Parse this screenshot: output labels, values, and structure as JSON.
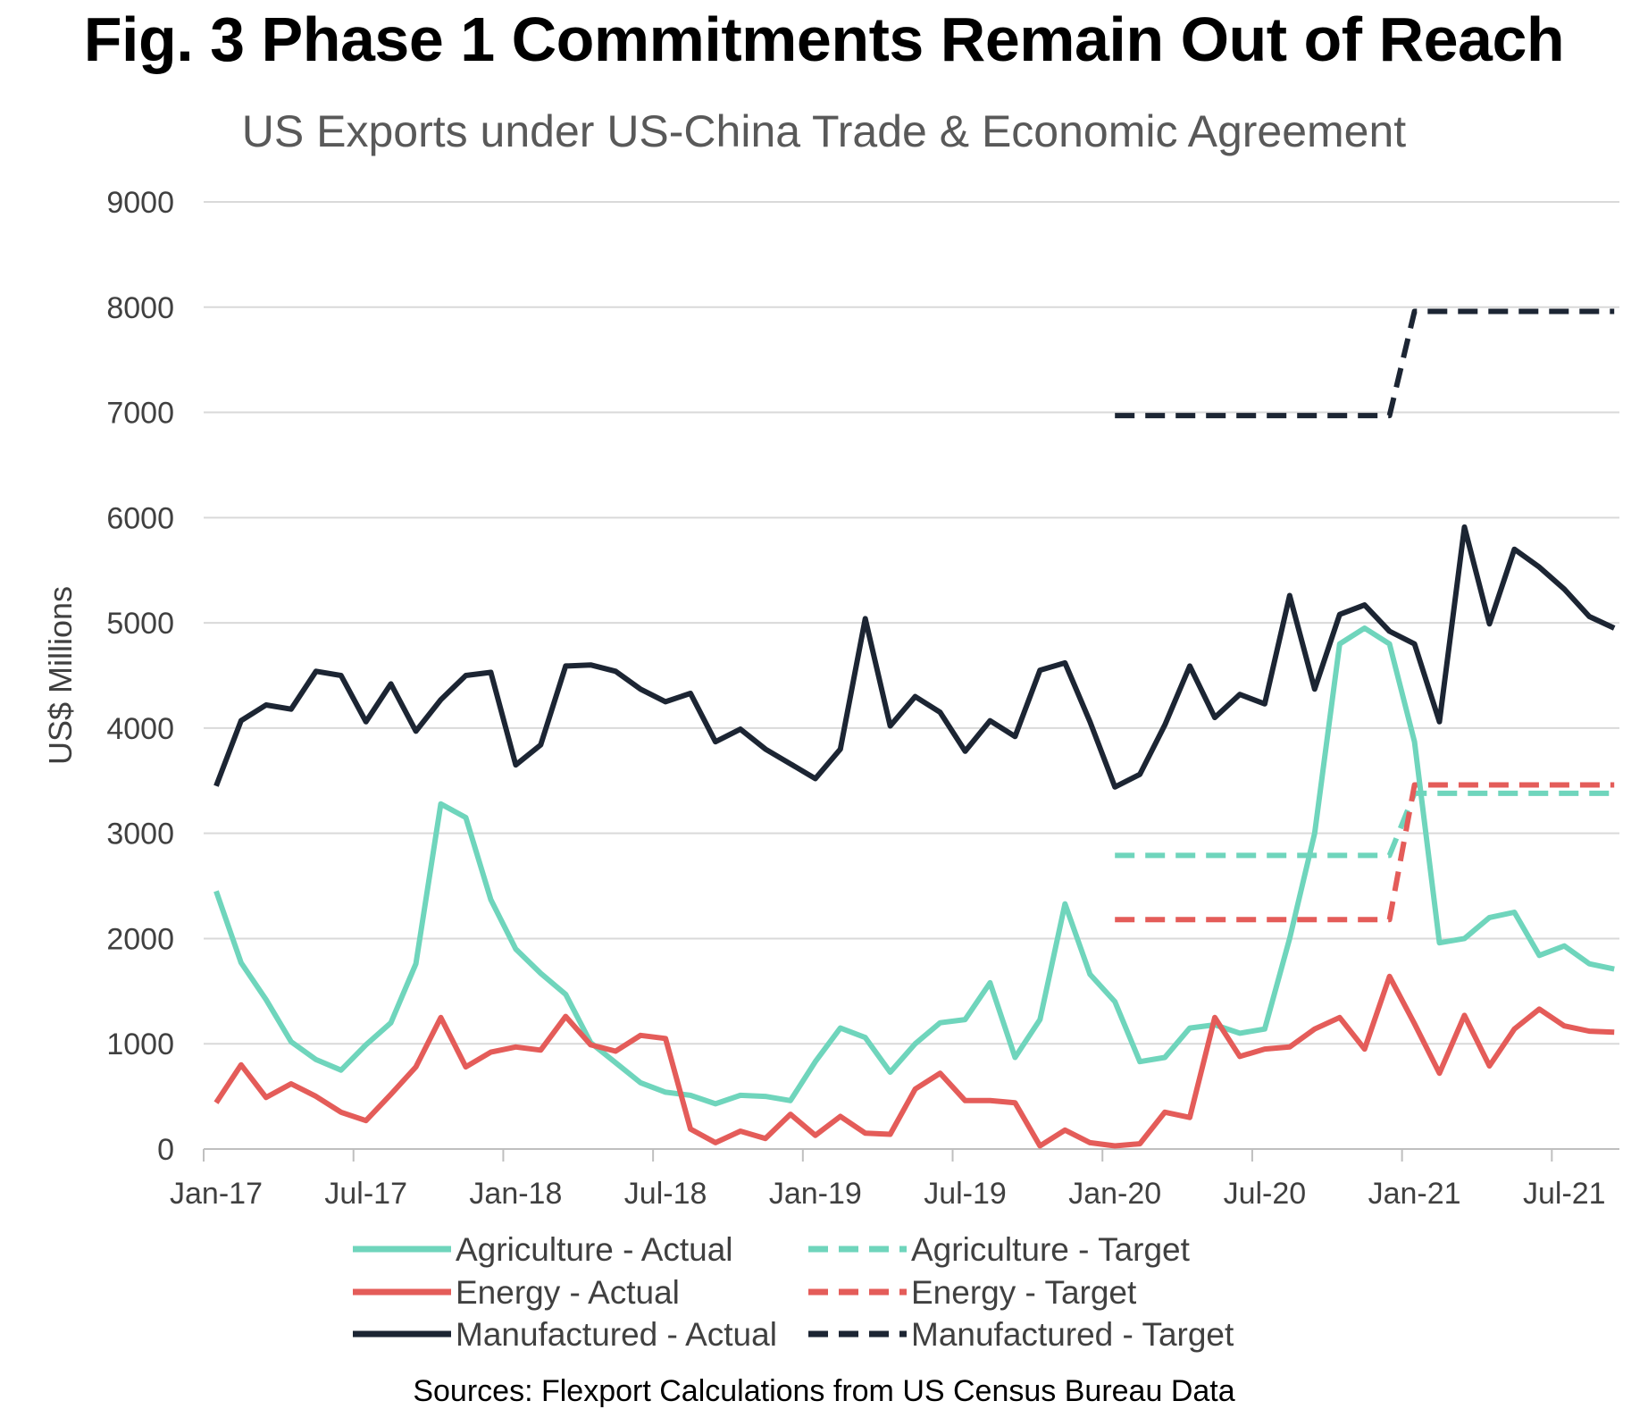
{
  "title": "Fig. 3 Phase 1 Commitments Remain Out of Reach",
  "subtitle": "US Exports under US-China Trade & Economic Agreement",
  "source": "Sources: Flexport Calculations from US Census Bureau Data",
  "colors": {
    "agriculture": "#6fd5bc",
    "energy": "#e45c59",
    "manufactured": "#1c2533",
    "grid": "#d9d9d9",
    "axis": "#bfbfbf",
    "text": "#404040"
  },
  "chart_data": {
    "type": "line",
    "ylabel": "US$ Millions",
    "xlabel": "",
    "ylim": [
      0,
      9000
    ],
    "yticks": [
      0,
      1000,
      2000,
      3000,
      4000,
      5000,
      6000,
      7000,
      8000,
      9000
    ],
    "xlim": [
      "Jan-17",
      "Sep-21"
    ],
    "xticks": [
      "Jan-17",
      "Jul-17",
      "Jan-18",
      "Jul-18",
      "Jan-19",
      "Jul-19",
      "Jan-20",
      "Jul-20",
      "Jan-21",
      "Jul-21"
    ],
    "grid": "horizontal",
    "legend_position": "bottom",
    "months": [
      "Jan-17",
      "Feb-17",
      "Mar-17",
      "Apr-17",
      "May-17",
      "Jun-17",
      "Jul-17",
      "Aug-17",
      "Sep-17",
      "Oct-17",
      "Nov-17",
      "Dec-17",
      "Jan-18",
      "Feb-18",
      "Mar-18",
      "Apr-18",
      "May-18",
      "Jun-18",
      "Jul-18",
      "Aug-18",
      "Sep-18",
      "Oct-18",
      "Nov-18",
      "Dec-18",
      "Jan-19",
      "Feb-19",
      "Mar-19",
      "Apr-19",
      "May-19",
      "Jun-19",
      "Jul-19",
      "Aug-19",
      "Sep-19",
      "Oct-19",
      "Nov-19",
      "Dec-19",
      "Jan-20",
      "Feb-20",
      "Mar-20",
      "Apr-20",
      "May-20",
      "Jun-20",
      "Jul-20",
      "Aug-20",
      "Sep-20",
      "Oct-20",
      "Nov-20",
      "Dec-20",
      "Jan-21",
      "Feb-21",
      "Mar-21",
      "Apr-21",
      "May-21",
      "Jun-21",
      "Jul-21",
      "Aug-21",
      "Sep-21"
    ],
    "series": [
      {
        "name": "Agriculture - Actual",
        "color": "#6fd5bc",
        "style": "solid",
        "values": [
          2450,
          1770,
          1420,
          1020,
          850,
          750,
          990,
          1200,
          1760,
          3280,
          3150,
          2370,
          1900,
          1670,
          1470,
          1010,
          820,
          630,
          540,
          510,
          430,
          510,
          500,
          460,
          830,
          1150,
          1060,
          730,
          1000,
          1200,
          1230,
          1580,
          870,
          1230,
          2330,
          1660,
          1400,
          830,
          870,
          1150,
          1180,
          1100,
          1140,
          2000,
          3000,
          4800,
          4950,
          4800,
          3870,
          1960,
          2000,
          2200,
          2250,
          1840,
          1930,
          1760,
          1710
        ]
      },
      {
        "name": "Energy - Actual",
        "color": "#e45c59",
        "style": "solid",
        "values": [
          440,
          800,
          490,
          620,
          500,
          350,
          270,
          520,
          780,
          1250,
          780,
          920,
          970,
          940,
          1260,
          990,
          930,
          1080,
          1050,
          190,
          60,
          170,
          100,
          330,
          130,
          310,
          150,
          140,
          570,
          720,
          460,
          460,
          440,
          30,
          180,
          60,
          30,
          50,
          350,
          300,
          1250,
          880,
          950,
          970,
          1140,
          1250,
          950,
          1640,
          1190,
          720,
          1270,
          790,
          1140,
          1330,
          1170,
          1120,
          1110
        ]
      },
      {
        "name": "Manufactured - Actual",
        "color": "#1c2533",
        "style": "solid",
        "values": [
          3450,
          4070,
          4220,
          4180,
          4540,
          4500,
          4060,
          4420,
          3970,
          4270,
          4500,
          4530,
          3650,
          3840,
          4590,
          4600,
          4540,
          4370,
          4250,
          4330,
          3870,
          3990,
          3800,
          3660,
          3520,
          3800,
          5040,
          4020,
          4300,
          4150,
          3780,
          4070,
          3920,
          4550,
          4620,
          4060,
          3440,
          3560,
          4030,
          4590,
          4100,
          4320,
          4230,
          5260,
          4370,
          5080,
          5170,
          4920,
          4800,
          4060,
          5910,
          4990,
          5700,
          5530,
          5320,
          5060,
          4950
        ]
      },
      {
        "name": "Agriculture - Target",
        "color": "#6fd5bc",
        "style": "dashed",
        "start_index": 36,
        "values": [
          2790,
          2790,
          2790,
          2790,
          2790,
          2790,
          2790,
          2790,
          2790,
          2790,
          2790,
          2790,
          3380,
          3380,
          3380,
          3380,
          3380,
          3380,
          3380,
          3380,
          3380
        ]
      },
      {
        "name": "Energy - Target",
        "color": "#e45c59",
        "style": "dashed",
        "start_index": 36,
        "values": [
          2180,
          2180,
          2180,
          2180,
          2180,
          2180,
          2180,
          2180,
          2180,
          2180,
          2180,
          2180,
          3460,
          3460,
          3460,
          3460,
          3460,
          3460,
          3460,
          3460,
          3460
        ]
      },
      {
        "name": "Manufactured - Target",
        "color": "#1c2533",
        "style": "dashed",
        "start_index": 36,
        "values": [
          6970,
          6970,
          6970,
          6970,
          6970,
          6970,
          6970,
          6970,
          6970,
          6970,
          6970,
          6970,
          7960,
          7960,
          7960,
          7960,
          7960,
          7960,
          7960,
          7960,
          7960
        ]
      }
    ],
    "legend": [
      {
        "label": "Agriculture - Actual",
        "color": "#6fd5bc",
        "style": "solid"
      },
      {
        "label": "Agriculture - Target",
        "color": "#6fd5bc",
        "style": "dashed"
      },
      {
        "label": "Energy - Actual",
        "color": "#e45c59",
        "style": "solid"
      },
      {
        "label": "Energy - Target",
        "color": "#e45c59",
        "style": "dashed"
      },
      {
        "label": "Manufactured - Actual",
        "color": "#1c2533",
        "style": "solid"
      },
      {
        "label": "Manufactured - Target",
        "color": "#1c2533",
        "style": "dashed"
      }
    ]
  }
}
